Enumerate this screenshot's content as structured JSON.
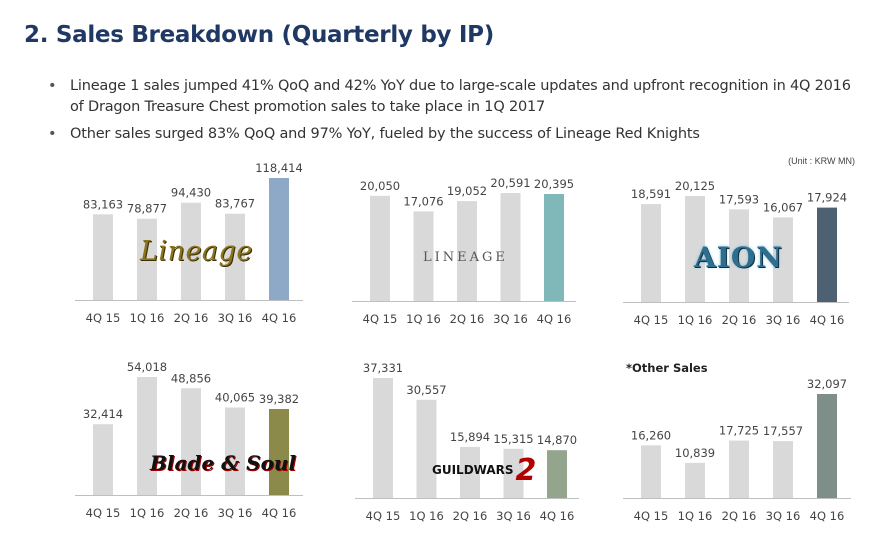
{
  "header": {
    "title": "2. Sales Breakdown (Quarterly by IP)"
  },
  "bullets": [
    "Lineage 1 sales jumped 41% QoQ and 42% YoY due to large-scale updates and upfront recognition in 4Q 2016 of Dragon Treasure Chest promotion sales to take place in 1Q 2017",
    "Other sales surged 83% QoQ and 97% YoY, fueled by the success of Lineage Red Knights"
  ],
  "unit": "(Unit : KRW MN)",
  "logos": {
    "lineage1": "Lineage",
    "lineage2": "LINEAGE",
    "aion": "AION",
    "bns": "Blade & Soul",
    "gw2": "GUILDWARS",
    "gw2_num": "2"
  },
  "chart_data": [
    {
      "type": "bar",
      "categories": [
        "4Q 15",
        "1Q 16",
        "2Q 16",
        "3Q 16",
        "4Q 16"
      ],
      "values": [
        83163,
        78877,
        94430,
        83767,
        118414
      ],
      "labels": [
        "83,163",
        "78,877",
        "94,430",
        "83,767",
        "118,414"
      ],
      "highlight_color": "#8ea9c8",
      "base_color": "#d9d9d9",
      "title": ""
    },
    {
      "type": "bar",
      "categories": [
        "4Q 15",
        "1Q 16",
        "2Q 16",
        "3Q 16",
        "4Q 16"
      ],
      "values": [
        20050,
        17076,
        19052,
        20591,
        20395
      ],
      "labels": [
        "20,050",
        "17,076",
        "19,052",
        "20,591",
        "20,395"
      ],
      "highlight_color": "#80b7b8",
      "base_color": "#d9d9d9",
      "title": ""
    },
    {
      "type": "bar",
      "categories": [
        "4Q 15",
        "1Q 16",
        "2Q 16",
        "3Q 16",
        "4Q 16"
      ],
      "values": [
        18591,
        20125,
        17593,
        16067,
        17924
      ],
      "labels": [
        "18,591",
        "20,125",
        "17,593",
        "16,067",
        "17,924"
      ],
      "highlight_color": "#4d6173",
      "base_color": "#d9d9d9",
      "title": ""
    },
    {
      "type": "bar",
      "categories": [
        "4Q 15",
        "1Q 16",
        "2Q 16",
        "3Q 16",
        "4Q 16"
      ],
      "values": [
        32414,
        54018,
        48856,
        40065,
        39382
      ],
      "labels": [
        "32,414",
        "54,018",
        "48,856",
        "40,065",
        "39,382"
      ],
      "highlight_color": "#8c8a4a",
      "base_color": "#d9d9d9",
      "title": ""
    },
    {
      "type": "bar",
      "categories": [
        "4Q 15",
        "1Q 16",
        "2Q 16",
        "3Q 16",
        "4Q 16"
      ],
      "values": [
        37331,
        30557,
        15894,
        15315,
        14870
      ],
      "labels": [
        "37,331",
        "30,557",
        "15,894",
        "15,315",
        "14,870"
      ],
      "highlight_color": "#93a58c",
      "base_color": "#d9d9d9",
      "title": ""
    },
    {
      "type": "bar",
      "categories": [
        "4Q 15",
        "1Q 16",
        "2Q 16",
        "3Q 16",
        "4Q 16"
      ],
      "values": [
        16260,
        10839,
        17725,
        17557,
        32097
      ],
      "labels": [
        "16,260",
        "10,839",
        "17,725",
        "17,557",
        "32,097"
      ],
      "highlight_color": "#7e8e89",
      "base_color": "#d9d9d9",
      "title": "*Other Sales"
    }
  ]
}
